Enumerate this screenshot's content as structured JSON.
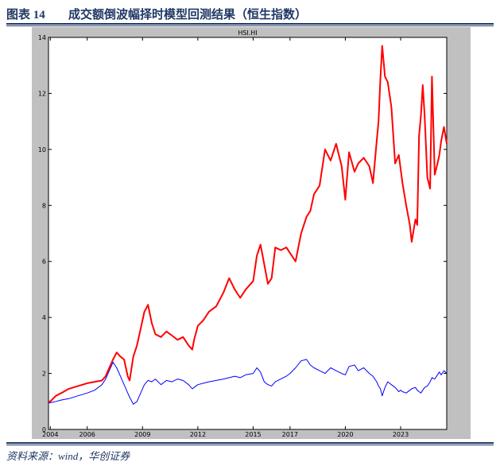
{
  "header": {
    "figure_label": "图表 14",
    "figure_title": "成交额倒波幅择时模型回测结果（恒生指数）"
  },
  "source_note": "资料来源：wind，华创证券",
  "colors": {
    "strategy": "#ff0000",
    "index": "#0000ff",
    "frame": "#c0c0c0",
    "title_text": "#1f3864"
  },
  "chart_data": {
    "type": "line",
    "title": "HSI.HI",
    "xlabel": "",
    "ylabel": "",
    "xlim": [
      2003.9,
      2025.5
    ],
    "ylim": [
      0,
      14
    ],
    "x_ticks": [
      2004,
      2006,
      2009,
      2012,
      2015,
      2017,
      2020,
      2023
    ],
    "x_tick_labels": [
      "2004",
      "2006",
      "2009",
      "2012",
      "2015",
      "2017",
      "2020",
      "2023"
    ],
    "y_ticks": [
      0,
      2,
      4,
      6,
      8,
      10,
      12,
      14
    ],
    "y_tick_labels": [
      "0",
      "2",
      "4",
      "6",
      "8",
      "10",
      "12",
      "14"
    ],
    "grid": false,
    "legend": "none",
    "series": [
      {
        "color": "#ff0000",
        "x": [
          2003.9,
          2004.0,
          2004.3,
          2004.6,
          2005.0,
          2005.5,
          2006.0,
          2006.4,
          2006.8,
          2007.0,
          2007.2,
          2007.4,
          2007.6,
          2007.8,
          2008.0,
          2008.2,
          2008.3,
          2008.5,
          2008.7,
          2008.9,
          2009.1,
          2009.3,
          2009.5,
          2009.7,
          2010.0,
          2010.3,
          2010.6,
          2010.9,
          2011.2,
          2011.5,
          2011.7,
          2011.8,
          2012.0,
          2012.3,
          2012.6,
          2013.0,
          2013.4,
          2013.7,
          2014.0,
          2014.3,
          2014.6,
          2015.0,
          2015.2,
          2015.4,
          2015.6,
          2015.8,
          2016.0,
          2016.2,
          2016.5,
          2016.8,
          2017.0,
          2017.3,
          2017.6,
          2017.9,
          2018.1,
          2018.3,
          2018.6,
          2018.9,
          2019.2,
          2019.5,
          2019.8,
          2020.0,
          2020.2,
          2020.5,
          2020.7,
          2021.0,
          2021.3,
          2021.5,
          2021.7,
          2021.8,
          2021.9,
          2022.0,
          2022.15,
          2022.3,
          2022.5,
          2022.7,
          2022.9,
          2023.0,
          2023.1,
          2023.3,
          2023.5,
          2023.6,
          2023.8,
          2023.9,
          2024.0,
          2024.1,
          2024.2,
          2024.3,
          2024.45,
          2024.6,
          2024.7,
          2024.85,
          2025.0,
          2025.1,
          2025.2,
          2025.35,
          2025.5
        ],
        "y": [
          1.0,
          1.0,
          1.2,
          1.3,
          1.45,
          1.55,
          1.65,
          1.7,
          1.75,
          1.9,
          2.2,
          2.5,
          2.75,
          2.6,
          2.5,
          1.9,
          1.75,
          2.6,
          3.0,
          3.6,
          4.2,
          4.45,
          3.8,
          3.4,
          3.3,
          3.5,
          3.35,
          3.2,
          3.3,
          3.0,
          2.85,
          3.2,
          3.7,
          3.9,
          4.2,
          4.4,
          4.9,
          5.4,
          5.0,
          4.7,
          5.0,
          5.3,
          6.2,
          6.6,
          5.9,
          5.2,
          5.4,
          6.5,
          6.4,
          6.5,
          6.3,
          6.0,
          7.0,
          7.6,
          7.8,
          8.4,
          8.7,
          10.0,
          9.6,
          10.2,
          9.4,
          8.2,
          9.9,
          9.2,
          9.5,
          9.7,
          9.4,
          8.8,
          10.3,
          11.0,
          12.5,
          13.7,
          12.6,
          12.4,
          11.5,
          9.5,
          9.8,
          9.3,
          8.8,
          8.0,
          7.3,
          6.7,
          7.5,
          7.3,
          10.5,
          11.2,
          12.3,
          11.2,
          9.0,
          8.6,
          12.6,
          9.1,
          9.5,
          9.8,
          10.3,
          10.8,
          10.2
        ]
      },
      {
        "color": "#0000ff",
        "x": [
          2003.9,
          2004.0,
          2004.3,
          2004.6,
          2005.0,
          2005.5,
          2006.0,
          2006.4,
          2006.8,
          2007.0,
          2007.2,
          2007.4,
          2007.6,
          2007.8,
          2008.0,
          2008.2,
          2008.3,
          2008.5,
          2008.7,
          2008.9,
          2009.1,
          2009.3,
          2009.5,
          2009.7,
          2010.0,
          2010.3,
          2010.6,
          2010.9,
          2011.2,
          2011.5,
          2011.7,
          2011.8,
          2012.0,
          2012.3,
          2012.6,
          2013.0,
          2013.4,
          2013.7,
          2014.0,
          2014.3,
          2014.6,
          2015.0,
          2015.2,
          2015.4,
          2015.6,
          2015.8,
          2016.0,
          2016.2,
          2016.5,
          2016.8,
          2017.0,
          2017.3,
          2017.6,
          2017.9,
          2018.1,
          2018.3,
          2018.6,
          2018.9,
          2019.2,
          2019.5,
          2019.8,
          2020.0,
          2020.2,
          2020.5,
          2020.7,
          2021.0,
          2021.3,
          2021.5,
          2021.7,
          2021.8,
          2021.9,
          2022.0,
          2022.15,
          2022.3,
          2022.5,
          2022.7,
          2022.9,
          2023.0,
          2023.1,
          2023.3,
          2023.5,
          2023.6,
          2023.8,
          2023.9,
          2024.0,
          2024.1,
          2024.2,
          2024.3,
          2024.45,
          2024.6,
          2024.7,
          2024.85,
          2025.0,
          2025.1,
          2025.2,
          2025.35,
          2025.5
        ],
        "y": [
          0.95,
          0.95,
          1.0,
          1.05,
          1.1,
          1.2,
          1.3,
          1.4,
          1.6,
          1.8,
          2.1,
          2.4,
          2.2,
          1.9,
          1.6,
          1.3,
          1.15,
          0.9,
          1.0,
          1.3,
          1.6,
          1.75,
          1.7,
          1.8,
          1.6,
          1.75,
          1.7,
          1.8,
          1.75,
          1.6,
          1.45,
          1.5,
          1.6,
          1.65,
          1.7,
          1.75,
          1.8,
          1.85,
          1.9,
          1.85,
          1.95,
          2.0,
          2.2,
          2.05,
          1.7,
          1.6,
          1.55,
          1.7,
          1.8,
          1.9,
          2.0,
          2.2,
          2.45,
          2.5,
          2.3,
          2.2,
          2.1,
          2.0,
          2.2,
          2.1,
          2.0,
          1.95,
          2.25,
          2.3,
          2.1,
          2.2,
          2.0,
          1.9,
          1.7,
          1.55,
          1.45,
          1.2,
          1.5,
          1.7,
          1.6,
          1.5,
          1.35,
          1.4,
          1.35,
          1.3,
          1.4,
          1.45,
          1.5,
          1.4,
          1.35,
          1.3,
          1.4,
          1.5,
          1.55,
          1.7,
          1.85,
          1.8,
          1.95,
          2.05,
          1.95,
          2.1,
          2.0
        ]
      }
    ]
  }
}
